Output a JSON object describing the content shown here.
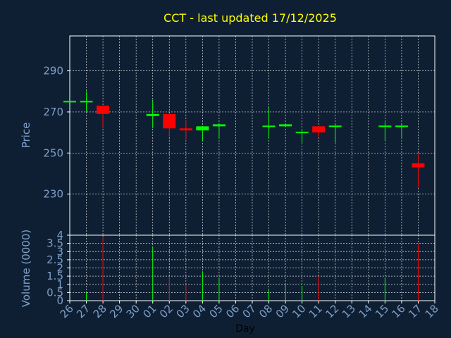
{
  "title": "CCT - last updated 17/12/2025",
  "colors": {
    "background": "#0f1f33",
    "plot_bg": "#0f1f33",
    "frame": "#ffffff",
    "grid": "#dcdcdc",
    "title": "#ffff00",
    "axis_text": "#7f9fc7",
    "day_label": "#000000",
    "up": "#00ff00",
    "down": "#ff0000"
  },
  "chart_data": [
    {
      "type": "candlestick",
      "ylabel": "Price",
      "ylim": [
        210,
        307
      ],
      "yticks": [
        230,
        250,
        270,
        290
      ],
      "grid": true,
      "categories": [
        "26",
        "27",
        "28",
        "29",
        "30",
        "01",
        "02",
        "03",
        "04",
        "05",
        "06",
        "07",
        "08",
        "09",
        "10",
        "11",
        "12",
        "13",
        "14",
        "15",
        "16",
        "17",
        "18"
      ],
      "candles": [
        {
          "x": "26",
          "open": 275,
          "high": 275,
          "low": 275,
          "close": 275
        },
        {
          "x": "27",
          "open": 275,
          "high": 280,
          "low": 270,
          "close": 275
        },
        {
          "x": "28",
          "open": 273,
          "high": 273,
          "low": 262,
          "close": 269
        },
        {
          "x": "01",
          "open": 268,
          "high": 276,
          "low": 262,
          "close": 269
        },
        {
          "x": "02",
          "open": 269,
          "high": 269,
          "low": 258,
          "close": 262
        },
        {
          "x": "03",
          "open": 262,
          "high": 266,
          "low": 256,
          "close": 261
        },
        {
          "x": "04",
          "open": 261,
          "high": 263,
          "low": 256,
          "close": 263
        },
        {
          "x": "05",
          "open": 263,
          "high": 264,
          "low": 257,
          "close": 264
        },
        {
          "x": "08",
          "open": 263,
          "high": 272,
          "low": 257,
          "close": 263
        },
        {
          "x": "09",
          "open": 263,
          "high": 264,
          "low": 263,
          "close": 264
        },
        {
          "x": "10",
          "open": 260,
          "high": 261,
          "low": 255,
          "close": 260
        },
        {
          "x": "11",
          "open": 263,
          "high": 263,
          "low": 258,
          "close": 260
        },
        {
          "x": "12",
          "open": 263,
          "high": 264,
          "low": 255,
          "close": 263
        },
        {
          "x": "15",
          "open": 263,
          "high": 265,
          "low": 256,
          "close": 263
        },
        {
          "x": "16",
          "open": 263,
          "high": 264,
          "low": 257,
          "close": 263
        },
        {
          "x": "17",
          "open": 245,
          "high": 250,
          "low": 233,
          "close": 243
        }
      ]
    },
    {
      "type": "bar",
      "ylabel": "Volume (0000)",
      "ylim": [
        0,
        4
      ],
      "yticks": [
        0,
        0.5,
        1,
        1.5,
        2,
        2.5,
        3,
        3.5,
        4
      ],
      "ytick_labels": [
        "0",
        "0.5",
        "1",
        "1.5",
        "2",
        "2.5",
        "3",
        "3.5",
        "4"
      ],
      "grid": true,
      "xlabel": "Day",
      "categories": [
        "26",
        "27",
        "28",
        "29",
        "30",
        "01",
        "02",
        "03",
        "04",
        "05",
        "06",
        "07",
        "08",
        "09",
        "10",
        "11",
        "12",
        "13",
        "14",
        "15",
        "16",
        "17",
        "18"
      ],
      "bars": [
        {
          "x": "27",
          "value": 0.5,
          "direction": "up"
        },
        {
          "x": "28",
          "value": 3.9,
          "direction": "down"
        },
        {
          "x": "01",
          "value": 3.3,
          "direction": "up"
        },
        {
          "x": "02",
          "value": 1.4,
          "direction": "down"
        },
        {
          "x": "03",
          "value": 1.0,
          "direction": "down"
        },
        {
          "x": "04",
          "value": 1.8,
          "direction": "up"
        },
        {
          "x": "05",
          "value": 1.4,
          "direction": "up"
        },
        {
          "x": "08",
          "value": 0.7,
          "direction": "up"
        },
        {
          "x": "09",
          "value": 1.0,
          "direction": "up"
        },
        {
          "x": "10",
          "value": 0.9,
          "direction": "up"
        },
        {
          "x": "11",
          "value": 1.5,
          "direction": "down"
        },
        {
          "x": "15",
          "value": 1.4,
          "direction": "up"
        },
        {
          "x": "17",
          "value": 3.5,
          "direction": "down"
        }
      ]
    }
  ]
}
